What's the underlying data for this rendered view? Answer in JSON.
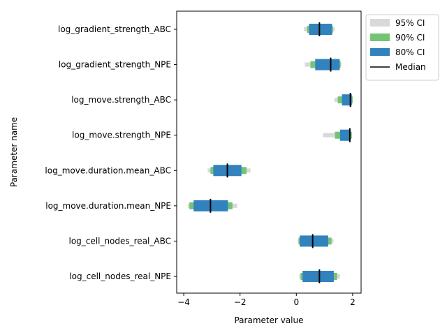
{
  "chart_data": {
    "type": "interval",
    "xlabel": "Parameter value",
    "ylabel": "Parameter name",
    "xlim": [
      -4.25,
      2.3
    ],
    "xticks": [
      -4,
      -2,
      0,
      2
    ],
    "xtick_labels": [
      "−4",
      "−2",
      "0",
      "2"
    ],
    "legend": {
      "placement": "upper-right-outside",
      "entries": [
        {
          "label": "95% CI",
          "color": "#d9d9d9",
          "kind": "patch"
        },
        {
          "label": "90% CI",
          "color": "#74c476",
          "kind": "patch"
        },
        {
          "label": "80% CI",
          "color": "#3182bd",
          "kind": "patch"
        },
        {
          "label": "Median",
          "color": "#000000",
          "kind": "line"
        }
      ]
    },
    "parameters": [
      {
        "name": "log_gradient_strength_ABC",
        "ci95": [
          0.27,
          1.37
        ],
        "ci90": [
          0.38,
          1.3
        ],
        "ci80": [
          0.45,
          1.27
        ],
        "median": 0.82
      },
      {
        "name": "log_gradient_strength_NPE",
        "ci95": [
          0.3,
          1.6
        ],
        "ci90": [
          0.5,
          1.57
        ],
        "ci80": [
          0.67,
          1.54
        ],
        "median": 1.22
      },
      {
        "name": "log_move.strength_ABC",
        "ci95": [
          1.35,
          2.0
        ],
        "ci90": [
          1.47,
          2.0
        ],
        "ci80": [
          1.62,
          1.97
        ],
        "median": 1.92
      },
      {
        "name": "log_move.strength_NPE",
        "ci95": [
          0.95,
          1.97
        ],
        "ci90": [
          1.37,
          1.97
        ],
        "ci80": [
          1.55,
          1.93
        ],
        "median": 1.9
      },
      {
        "name": "log_move.duration.mean_ABC",
        "ci95": [
          -3.15,
          -1.63
        ],
        "ci90": [
          -3.05,
          -1.77
        ],
        "ci80": [
          -2.95,
          -1.95
        ],
        "median": -2.45
      },
      {
        "name": "log_move.duration.mean_NPE",
        "ci95": [
          -3.85,
          -2.1
        ],
        "ci90": [
          -3.8,
          -2.27
        ],
        "ci80": [
          -3.65,
          -2.43
        ],
        "median": -3.05
      },
      {
        "name": "log_cell_nodes_real_ABC",
        "ci95": [
          0.05,
          1.32
        ],
        "ci90": [
          0.08,
          1.25
        ],
        "ci80": [
          0.12,
          1.13
        ],
        "median": 0.58
      },
      {
        "name": "log_cell_nodes_real_NPE",
        "ci95": [
          0.1,
          1.55
        ],
        "ci90": [
          0.15,
          1.45
        ],
        "ci80": [
          0.22,
          1.33
        ],
        "median": 0.82
      }
    ]
  }
}
